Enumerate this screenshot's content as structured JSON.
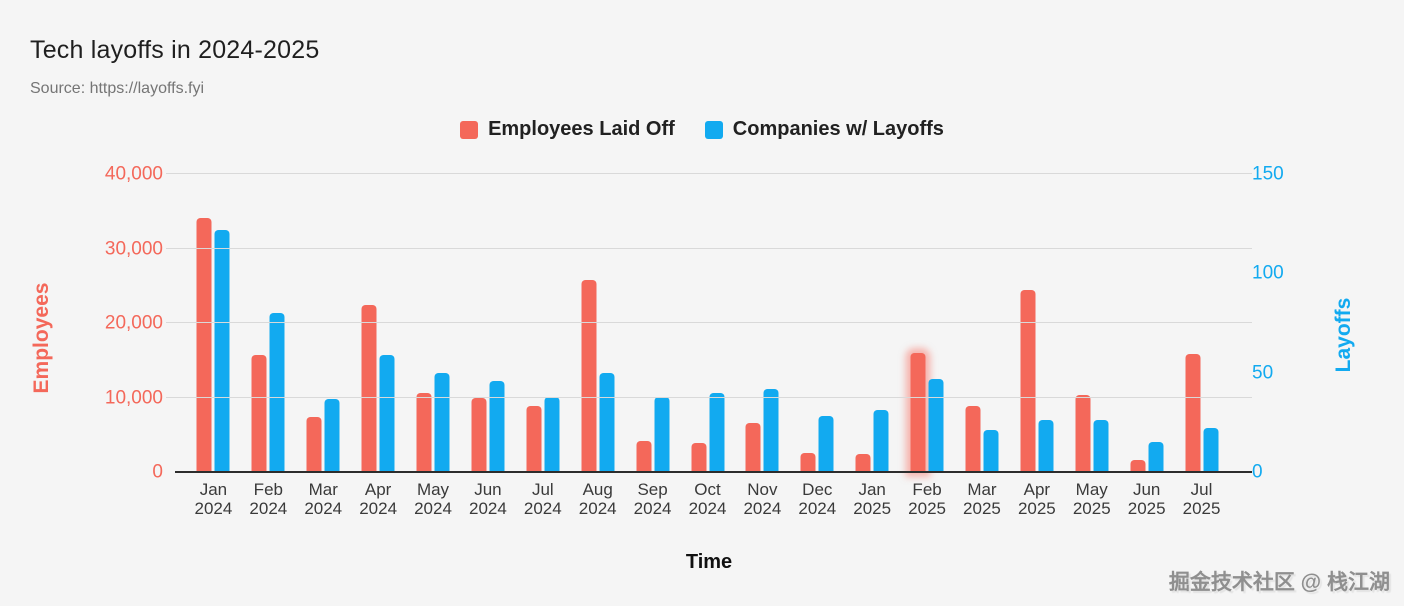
{
  "title": "Tech layoffs in 2024-2025",
  "source": "Source: https://layoffs.fyi",
  "watermark": "掘金技术社区 @ 栈江湖",
  "colors": {
    "background": "#f5f5f5",
    "employees_series": "#f4685a",
    "companies_series": "#12aaf0",
    "gridline": "#d9d9d9",
    "axis_line": "#2d2d2d"
  },
  "legend": {
    "items": [
      {
        "label": "Employees Laid Off",
        "color": "#f4685a"
      },
      {
        "label": "Companies w/ Layoffs",
        "color": "#12aaf0"
      }
    ]
  },
  "chart_data": {
    "type": "bar",
    "title": "Tech layoffs in 2024-2025",
    "xlabel": "Time",
    "grid": true,
    "legend_position": "top",
    "categories": [
      "Jan 2024",
      "Feb 2024",
      "Mar 2024",
      "Apr 2024",
      "May 2024",
      "Jun 2024",
      "Jul 2024",
      "Aug 2024",
      "Sep 2024",
      "Oct 2024",
      "Nov 2024",
      "Dec 2024",
      "Jan 2025",
      "Feb 2025",
      "Mar 2025",
      "Apr 2025",
      "May 2025",
      "Jun 2025",
      "Jul 2025"
    ],
    "series": [
      {
        "name": "Employees Laid Off",
        "axis": "left",
        "color": "#f4685a",
        "values": [
          34100,
          15700,
          7400,
          22400,
          10600,
          10000,
          8900,
          25800,
          4100,
          3900,
          6600,
          2500,
          2400,
          16000,
          8800,
          24400,
          10300,
          1600,
          15800
        ]
      },
      {
        "name": "Companies w/ Layoffs",
        "axis": "right",
        "color": "#12aaf0",
        "values": [
          122,
          80,
          37,
          59,
          50,
          46,
          38,
          50,
          38,
          40,
          42,
          28,
          31,
          47,
          21,
          26,
          26,
          15,
          22
        ]
      }
    ],
    "left_axis": {
      "label": "Employees",
      "ticks": [
        "0",
        "10,000",
        "20,000",
        "30,000",
        "40,000"
      ],
      "range": [
        0,
        40000
      ]
    },
    "right_axis": {
      "label": "Layoffs",
      "ticks": [
        "0",
        "50",
        "100",
        "150"
      ],
      "range": [
        0,
        150
      ]
    },
    "highlighted_bar": {
      "category": "Feb 2025",
      "series": "Employees Laid Off"
    }
  }
}
